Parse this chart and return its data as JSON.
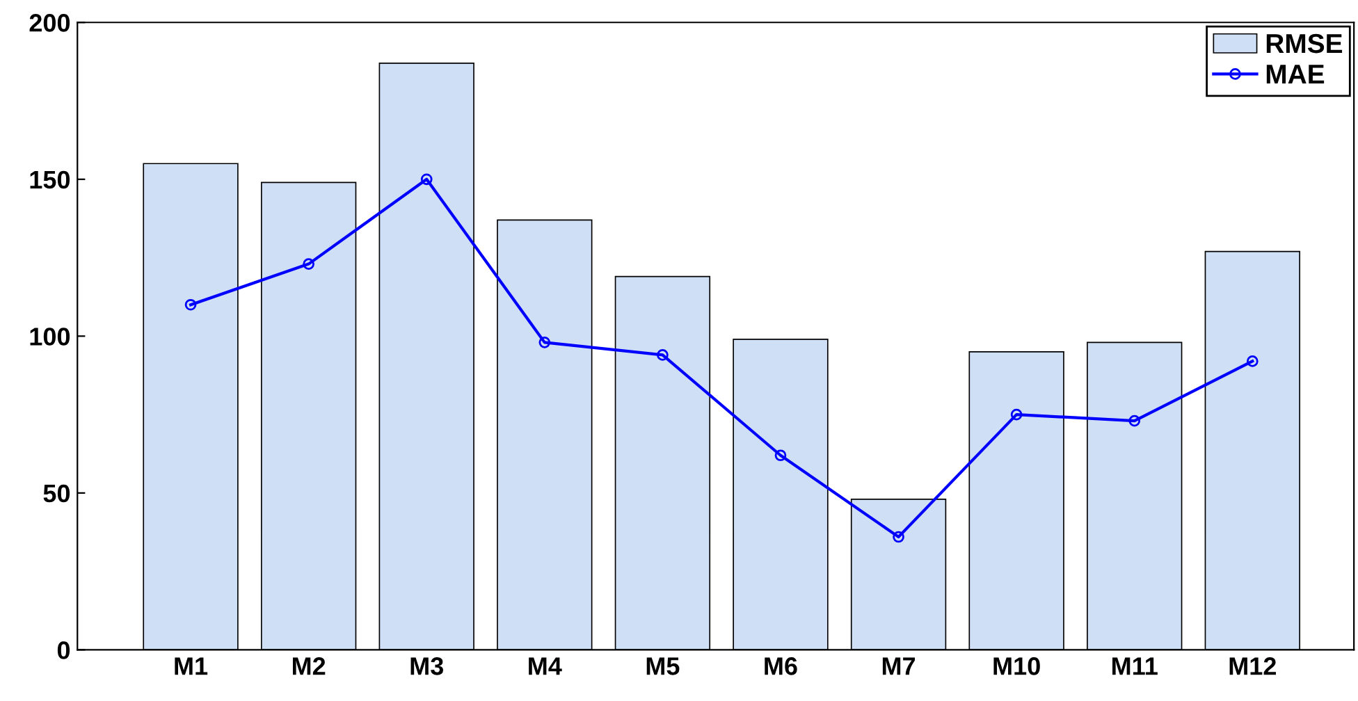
{
  "chart_data": {
    "type": "bar",
    "categories": [
      "M1",
      "M2",
      "M3",
      "M4",
      "M5",
      "M6",
      "M7",
      "M10",
      "M11",
      "M12"
    ],
    "series": [
      {
        "name": "RMSE",
        "color": "#cfdff5",
        "values": [
          155,
          149,
          187,
          137,
          119,
          99,
          48,
          95,
          98,
          127
        ]
      },
      {
        "name": "MAE",
        "type": "line",
        "color": "#0000ff",
        "marker": "circle",
        "line_style": "solid",
        "values": [
          110,
          123,
          150,
          98,
          94,
          62,
          36,
          75,
          73,
          92
        ]
      }
    ],
    "ylim": [
      0,
      200
    ],
    "yticks": [
      0,
      50,
      100,
      150,
      200
    ],
    "grid": false,
    "legend": "top right"
  }
}
